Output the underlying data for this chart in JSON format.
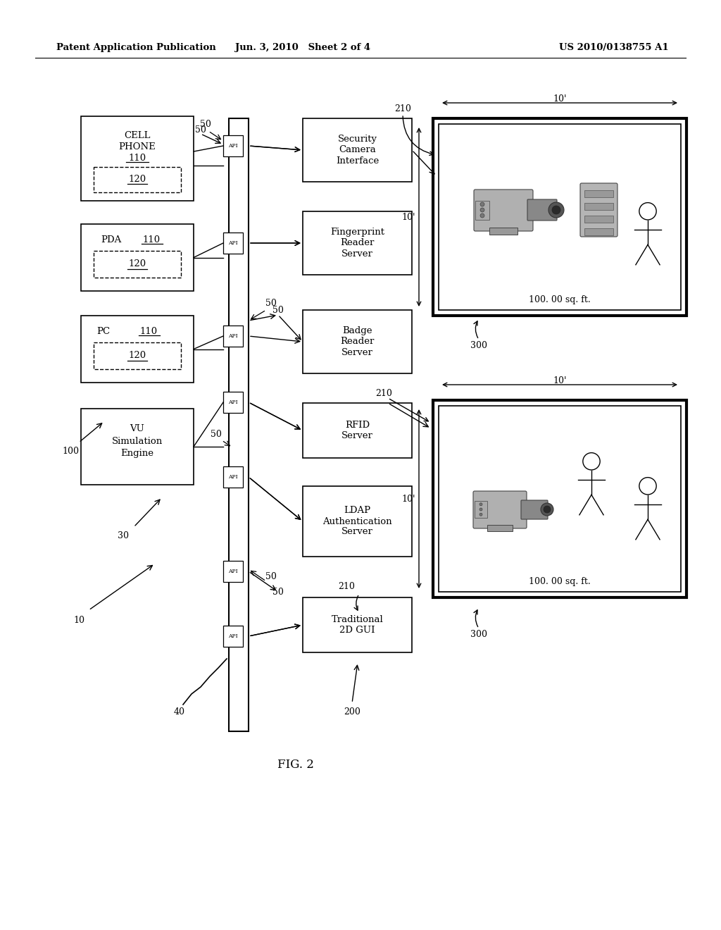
{
  "bg_color": "#ffffff",
  "header_left": "Patent Application Publication",
  "header_mid": "Jun. 3, 2010   Sheet 2 of 4",
  "header_right": "US 2010/0138755 A1",
  "fig_label": "FIG. 2"
}
